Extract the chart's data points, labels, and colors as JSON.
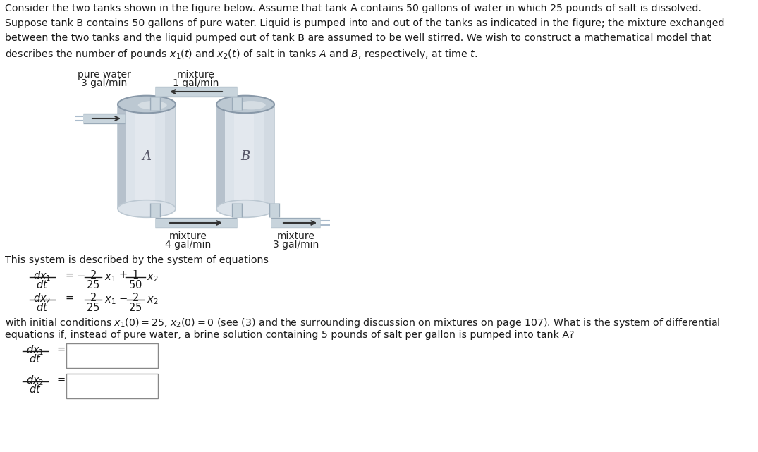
{
  "bg_color": "#ffffff",
  "text_color": "#333333",
  "paragraph1": "Consider the two tanks shown in the figure below. Assume that tank A contains 50 gallons of water in which 25 pounds of salt is dissolved.",
  "paragraph2": "Suppose tank B contains 50 gallons of pure water. Liquid is pumped into and out of the tanks as indicated in the figure; the mixture exchanged",
  "paragraph3": "between the two tanks and the liquid pumped out of tank B are assumed to be well stirred. We wish to construct a mathematical model that",
  "paragraph4": "describes the number of pounds $x_1(t)$ and $x_2(t)$ of salt in tanks $A$ and $B$, respectively, at time $t$.",
  "system_text": "This system is described by the system of equations",
  "initial_cond_text": "with initial conditions $x_1(0) = 25$, $x_2(0) = 0$ (see (3) and the surrounding discussion on mixtures on page 107). What is the system of differential",
  "initial_cond_text2": "equations if, instead of pure water, a brine solution containing 5 pounds of salt per gallon is pumped into tank A?",
  "tank_color_light": "#dce3ea",
  "tank_color_mid": "#bcc8d2",
  "tank_color_dark": "#8898a8",
  "tank_color_shine": "#eef2f5",
  "pipe_color": "#c8d4dc",
  "pipe_edge": "#9aaab8"
}
